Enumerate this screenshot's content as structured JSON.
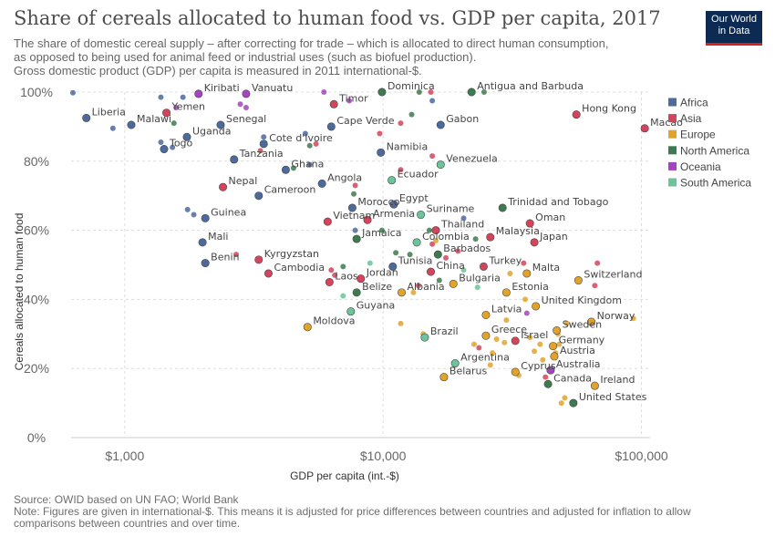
{
  "header": {
    "title": "Share of cereals allocated to human food vs. GDP per capita, 2017",
    "subtitle_lines": [
      "The share of domestic cereal supply – after correcting for trade – which is allocated to direct human consumption,",
      "as opposed to being used for animal feed or industrial uses (such as biofuel production).",
      "Gross domestic product (GDP) per capita is measured in 2011 international-$."
    ],
    "logo_lines": [
      "Our World",
      "in Data"
    ]
  },
  "footer": {
    "source": "Source: OWID based on UN FAO; World Bank",
    "note_lines": [
      "Note: Figures are given in international-$. This means it is adjusted for price differences between countries and adjusted for inflation to allow",
      "comparisons between countries and over time."
    ]
  },
  "colors": {
    "Africa": "#4c6a9c",
    "Asia": "#d4445d",
    "Europe": "#e2a32a",
    "North America": "#3e7a4f",
    "Oceania": "#a543c0",
    "South America": "#6cc49a"
  },
  "chart_data": {
    "type": "scatter",
    "title": "Share of cereals allocated to human food vs. GDP per capita, 2017",
    "xlabel": "GDP per capita (int.-$)",
    "ylabel": "Cereals allocated to human food",
    "x_scale": "log",
    "xlim": [
      620,
      108000
    ],
    "ylim": [
      0,
      100
    ],
    "x_ticks": [
      1000,
      10000,
      100000
    ],
    "x_tick_labels": [
      "$1,000",
      "$10,000",
      "$100,000"
    ],
    "y_ticks": [
      0,
      20,
      40,
      60,
      80,
      100
    ],
    "y_tick_labels": [
      "0%",
      "20%",
      "40%",
      "60%",
      "80%",
      "100%"
    ],
    "grid": true,
    "legend_position": "right",
    "legend": [
      "Africa",
      "Asia",
      "Europe",
      "North America",
      "Oceania",
      "South America"
    ],
    "points": [
      {
        "label": "Liberia",
        "x": 710,
        "y": 92.5,
        "region": "Africa"
      },
      {
        "label": "Malawi",
        "x": 1060,
        "y": 90.5,
        "region": "Africa"
      },
      {
        "label": "Yemen",
        "x": 1450,
        "y": 94,
        "region": "Asia"
      },
      {
        "label": "Kiribati",
        "x": 1930,
        "y": 99.5,
        "region": "Oceania"
      },
      {
        "label": "Vanuatu",
        "x": 2950,
        "y": 99.5,
        "region": "Oceania"
      },
      {
        "label": "Senegal",
        "x": 2350,
        "y": 90.5,
        "region": "Africa"
      },
      {
        "label": "Uganda",
        "x": 1740,
        "y": 87,
        "region": "Africa"
      },
      {
        "label": "Togo",
        "x": 1420,
        "y": 83.5,
        "region": "Africa"
      },
      {
        "label": "Tanzania",
        "x": 2650,
        "y": 80.5,
        "region": "Africa"
      },
      {
        "label": "Cote d'Ivoire",
        "x": 3450,
        "y": 85,
        "region": "Africa"
      },
      {
        "label": "Timor",
        "x": 6450,
        "y": 96.5,
        "region": "Asia"
      },
      {
        "label": "Cape Verde",
        "x": 6300,
        "y": 90,
        "region": "Africa"
      },
      {
        "label": "Dominica",
        "x": 9900,
        "y": 100,
        "region": "North America"
      },
      {
        "label": "Antigua and Barbuda",
        "x": 22000,
        "y": 100,
        "region": "North America"
      },
      {
        "label": "Gabon",
        "x": 16700,
        "y": 90.5,
        "region": "Africa"
      },
      {
        "label": "Hong Kong",
        "x": 56000,
        "y": 93.5,
        "region": "Asia"
      },
      {
        "label": "Macao",
        "x": 103000,
        "y": 89.5,
        "region": "Asia"
      },
      {
        "label": "Namibia",
        "x": 9800,
        "y": 82.5,
        "region": "Africa"
      },
      {
        "label": "Venezuela",
        "x": 16700,
        "y": 79,
        "region": "South America"
      },
      {
        "label": "Ghana",
        "x": 4200,
        "y": 77.5,
        "region": "Africa"
      },
      {
        "label": "Ecuador",
        "x": 10800,
        "y": 74.5,
        "region": "South America"
      },
      {
        "label": "Nepal",
        "x": 2400,
        "y": 72.5,
        "region": "Asia"
      },
      {
        "label": "Angola",
        "x": 5800,
        "y": 73.5,
        "region": "Africa"
      },
      {
        "label": "Cameroon",
        "x": 3300,
        "y": 70,
        "region": "Africa"
      },
      {
        "label": "Morocco",
        "x": 7600,
        "y": 66.5,
        "region": "Africa"
      },
      {
        "label": "Egypt",
        "x": 11000,
        "y": 67.5,
        "region": "Africa"
      },
      {
        "label": "Suriname",
        "x": 14000,
        "y": 64.5,
        "region": "South America"
      },
      {
        "label": "Trinidad and Tobago",
        "x": 29000,
        "y": 66.5,
        "region": "North America"
      },
      {
        "label": "Guinea",
        "x": 2050,
        "y": 63.5,
        "region": "Africa"
      },
      {
        "label": "Vietnam",
        "x": 6100,
        "y": 62.5,
        "region": "Asia"
      },
      {
        "label": "Armenia",
        "x": 8700,
        "y": 63,
        "region": "Asia"
      },
      {
        "label": "Oman",
        "x": 37000,
        "y": 62,
        "region": "Asia"
      },
      {
        "label": "Thailand",
        "x": 16000,
        "y": 60,
        "region": "Asia"
      },
      {
        "label": "Malaysia",
        "x": 26000,
        "y": 58,
        "region": "Asia"
      },
      {
        "label": "Japan",
        "x": 38500,
        "y": 56.5,
        "region": "Asia"
      },
      {
        "label": "Jamaica",
        "x": 7900,
        "y": 57.5,
        "region": "North America"
      },
      {
        "label": "Colombia",
        "x": 13500,
        "y": 56.5,
        "region": "South America"
      },
      {
        "label": "Mali",
        "x": 2000,
        "y": 56.5,
        "region": "Africa"
      },
      {
        "label": "Barbados",
        "x": 16300,
        "y": 53,
        "region": "North America"
      },
      {
        "label": "Benin",
        "x": 2050,
        "y": 50.5,
        "region": "Africa"
      },
      {
        "label": "Kyrgyzstan",
        "x": 3300,
        "y": 51.5,
        "region": "Asia"
      },
      {
        "label": "Tunisia",
        "x": 10900,
        "y": 49.5,
        "region": "Africa"
      },
      {
        "label": "Cambodia",
        "x": 3600,
        "y": 47.5,
        "region": "Asia"
      },
      {
        "label": "China",
        "x": 15300,
        "y": 48,
        "region": "Asia"
      },
      {
        "label": "Turkey",
        "x": 24500,
        "y": 49.5,
        "region": "Asia"
      },
      {
        "label": "Malta",
        "x": 36000,
        "y": 47.5,
        "region": "Europe"
      },
      {
        "label": "Switzerland",
        "x": 57000,
        "y": 45.5,
        "region": "Europe"
      },
      {
        "label": "Laos",
        "x": 6200,
        "y": 45,
        "region": "Asia"
      },
      {
        "label": "Jordan",
        "x": 8200,
        "y": 46,
        "region": "Asia"
      },
      {
        "label": "Belize",
        "x": 7900,
        "y": 42,
        "region": "North America"
      },
      {
        "label": "Bulgaria",
        "x": 18700,
        "y": 44.5,
        "region": "Europe"
      },
      {
        "label": "Albania",
        "x": 11800,
        "y": 42,
        "region": "Europe"
      },
      {
        "label": "Estonia",
        "x": 30000,
        "y": 42,
        "region": "Europe"
      },
      {
        "label": "United Kingdom",
        "x": 39000,
        "y": 38,
        "region": "Europe"
      },
      {
        "label": "Guyana",
        "x": 7500,
        "y": 36.5,
        "region": "South America"
      },
      {
        "label": "Moldova",
        "x": 5100,
        "y": 32,
        "region": "Europe"
      },
      {
        "label": "Latvia",
        "x": 25000,
        "y": 35.5,
        "region": "Europe"
      },
      {
        "label": "Norway",
        "x": 64000,
        "y": 33.5,
        "region": "Europe"
      },
      {
        "label": "Sweden",
        "x": 47000,
        "y": 31,
        "region": "Europe"
      },
      {
        "label": "Greece",
        "x": 25000,
        "y": 29.5,
        "region": "Europe"
      },
      {
        "label": "Brazil",
        "x": 14500,
        "y": 29,
        "region": "South America"
      },
      {
        "label": "Israel",
        "x": 32500,
        "y": 28,
        "region": "Asia"
      },
      {
        "label": "Germany",
        "x": 45500,
        "y": 26.5,
        "region": "Europe"
      },
      {
        "label": "Austria",
        "x": 46000,
        "y": 23.5,
        "region": "Europe"
      },
      {
        "label": "Argentina",
        "x": 19000,
        "y": 21.5,
        "region": "South America"
      },
      {
        "label": "Cyprus",
        "x": 32500,
        "y": 19,
        "region": "Europe"
      },
      {
        "label": "Australia",
        "x": 44500,
        "y": 19.5,
        "region": "Oceania"
      },
      {
        "label": "Belarus",
        "x": 17200,
        "y": 17.5,
        "region": "Europe"
      },
      {
        "label": "Canada",
        "x": 43500,
        "y": 15.5,
        "region": "North America"
      },
      {
        "label": "Ireland",
        "x": 66000,
        "y": 15,
        "region": "Europe"
      },
      {
        "label": "United States",
        "x": 54500,
        "y": 10,
        "region": "North America"
      },
      {
        "label": "",
        "x": 630,
        "y": 99.8,
        "region": "Africa"
      },
      {
        "label": "",
        "x": 900,
        "y": 89.5,
        "region": "Africa"
      },
      {
        "label": "",
        "x": 1380,
        "y": 98.5,
        "region": "Africa"
      },
      {
        "label": "",
        "x": 1680,
        "y": 98.5,
        "region": "Africa"
      },
      {
        "label": "",
        "x": 1580,
        "y": 95.5,
        "region": "Oceania"
      },
      {
        "label": "",
        "x": 1550,
        "y": 91,
        "region": "North America"
      },
      {
        "label": "",
        "x": 1380,
        "y": 85.5,
        "region": "Africa"
      },
      {
        "label": "",
        "x": 1530,
        "y": 84,
        "region": "Africa"
      },
      {
        "label": "",
        "x": 2800,
        "y": 96.5,
        "region": "Oceania"
      },
      {
        "label": "",
        "x": 2950,
        "y": 95.5,
        "region": "Oceania"
      },
      {
        "label": "",
        "x": 3450,
        "y": 87,
        "region": "Africa"
      },
      {
        "label": "",
        "x": 3350,
        "y": 83,
        "region": "Asia"
      },
      {
        "label": "",
        "x": 5000,
        "y": 88,
        "region": "Africa"
      },
      {
        "label": "",
        "x": 5200,
        "y": 84.5,
        "region": "North America"
      },
      {
        "label": "",
        "x": 5500,
        "y": 85,
        "region": "Asia"
      },
      {
        "label": "",
        "x": 5900,
        "y": 100,
        "region": "Oceania"
      },
      {
        "label": "",
        "x": 7400,
        "y": 97.5,
        "region": "Oceania"
      },
      {
        "label": "",
        "x": 9700,
        "y": 88,
        "region": "Asia"
      },
      {
        "label": "",
        "x": 11700,
        "y": 91,
        "region": "Asia"
      },
      {
        "label": "",
        "x": 12900,
        "y": 93.5,
        "region": "North America"
      },
      {
        "label": "",
        "x": 13800,
        "y": 100,
        "region": "North America"
      },
      {
        "label": "",
        "x": 15300,
        "y": 100,
        "region": "Asia"
      },
      {
        "label": "",
        "x": 15500,
        "y": 97.5,
        "region": "Africa"
      },
      {
        "label": "",
        "x": 24600,
        "y": 100,
        "region": "North America"
      },
      {
        "label": "",
        "x": 4500,
        "y": 78,
        "region": "North America"
      },
      {
        "label": "",
        "x": 5200,
        "y": 79,
        "region": "Africa"
      },
      {
        "label": "",
        "x": 7700,
        "y": 70.5,
        "region": "North America"
      },
      {
        "label": "",
        "x": 7800,
        "y": 73,
        "region": "Asia"
      },
      {
        "label": "",
        "x": 11700,
        "y": 77.5,
        "region": "Asia"
      },
      {
        "label": "",
        "x": 15500,
        "y": 81.5,
        "region": "Asia"
      },
      {
        "label": "",
        "x": 1750,
        "y": 66,
        "region": "Africa"
      },
      {
        "label": "",
        "x": 1850,
        "y": 64.5,
        "region": "Africa"
      },
      {
        "label": "",
        "x": 2700,
        "y": 53,
        "region": "Asia"
      },
      {
        "label": "",
        "x": 6500,
        "y": 47,
        "region": "Asia"
      },
      {
        "label": "",
        "x": 6300,
        "y": 48.5,
        "region": "Asia"
      },
      {
        "label": "",
        "x": 7000,
        "y": 49.5,
        "region": "North America"
      },
      {
        "label": "",
        "x": 7000,
        "y": 41,
        "region": "South America"
      },
      {
        "label": "",
        "x": 8900,
        "y": 50.5,
        "region": "South America"
      },
      {
        "label": "",
        "x": 7800,
        "y": 60,
        "region": "Africa"
      },
      {
        "label": "",
        "x": 9900,
        "y": 60,
        "region": "North America"
      },
      {
        "label": "",
        "x": 11200,
        "y": 53.5,
        "region": "North America"
      },
      {
        "label": "",
        "x": 12700,
        "y": 53,
        "region": "North America"
      },
      {
        "label": "",
        "x": 13100,
        "y": 42,
        "region": "Europe"
      },
      {
        "label": "",
        "x": 13700,
        "y": 44,
        "region": "Asia"
      },
      {
        "label": "",
        "x": 11700,
        "y": 33,
        "region": "Europe"
      },
      {
        "label": "",
        "x": 14300,
        "y": 30,
        "region": "Europe"
      },
      {
        "label": "",
        "x": 15100,
        "y": 60,
        "region": "North America"
      },
      {
        "label": "",
        "x": 15500,
        "y": 56,
        "region": "Asia"
      },
      {
        "label": "",
        "x": 16000,
        "y": 57,
        "region": "Europe"
      },
      {
        "label": "",
        "x": 16500,
        "y": 45.5,
        "region": "North America"
      },
      {
        "label": "",
        "x": 17500,
        "y": 52,
        "region": "Asia"
      },
      {
        "label": "",
        "x": 19500,
        "y": 54,
        "region": "Asia"
      },
      {
        "label": "",
        "x": 20500,
        "y": 48.5,
        "region": "South America"
      },
      {
        "label": "",
        "x": 20500,
        "y": 63.5,
        "region": "Africa"
      },
      {
        "label": "",
        "x": 22800,
        "y": 57.5,
        "region": "North America"
      },
      {
        "label": "",
        "x": 23200,
        "y": 43.5,
        "region": "South America"
      },
      {
        "label": "",
        "x": 22500,
        "y": 27,
        "region": "Europe"
      },
      {
        "label": "",
        "x": 23500,
        "y": 26,
        "region": "Asia"
      },
      {
        "label": "",
        "x": 26000,
        "y": 21,
        "region": "Europe"
      },
      {
        "label": "",
        "x": 26500,
        "y": 24.5,
        "region": "Europe"
      },
      {
        "label": "",
        "x": 27500,
        "y": 28.5,
        "region": "Europe"
      },
      {
        "label": "",
        "x": 29500,
        "y": 27.5,
        "region": "Europe"
      },
      {
        "label": "",
        "x": 30000,
        "y": 34,
        "region": "Europe"
      },
      {
        "label": "",
        "x": 31000,
        "y": 47.5,
        "region": "Europe"
      },
      {
        "label": "",
        "x": 33500,
        "y": 18,
        "region": "Europe"
      },
      {
        "label": "",
        "x": 35000,
        "y": 50.5,
        "region": "Asia"
      },
      {
        "label": "",
        "x": 35500,
        "y": 40,
        "region": "Europe"
      },
      {
        "label": "",
        "x": 36000,
        "y": 36,
        "region": "Oceania"
      },
      {
        "label": "",
        "x": 37000,
        "y": 29,
        "region": "Europe"
      },
      {
        "label": "",
        "x": 38500,
        "y": 25,
        "region": "Europe"
      },
      {
        "label": "",
        "x": 40500,
        "y": 27,
        "region": "Europe"
      },
      {
        "label": "",
        "x": 41500,
        "y": 22.5,
        "region": "Europe"
      },
      {
        "label": "",
        "x": 42500,
        "y": 17.5,
        "region": "Asia"
      },
      {
        "label": "",
        "x": 46500,
        "y": 24.5,
        "region": "Europe"
      },
      {
        "label": "",
        "x": 47500,
        "y": 30,
        "region": "Europe"
      },
      {
        "label": "",
        "x": 48000,
        "y": 27,
        "region": "Europe"
      },
      {
        "label": "",
        "x": 49000,
        "y": 10,
        "region": "Europe"
      },
      {
        "label": "",
        "x": 50500,
        "y": 11.5,
        "region": "Europe"
      },
      {
        "label": "",
        "x": 51500,
        "y": 33,
        "region": "Europe"
      },
      {
        "label": "",
        "x": 66000,
        "y": 44,
        "region": "Asia"
      },
      {
        "label": "",
        "x": 67500,
        "y": 50.5,
        "region": "Asia"
      },
      {
        "label": "",
        "x": 93000,
        "y": 34.5,
        "region": "Europe"
      }
    ]
  }
}
